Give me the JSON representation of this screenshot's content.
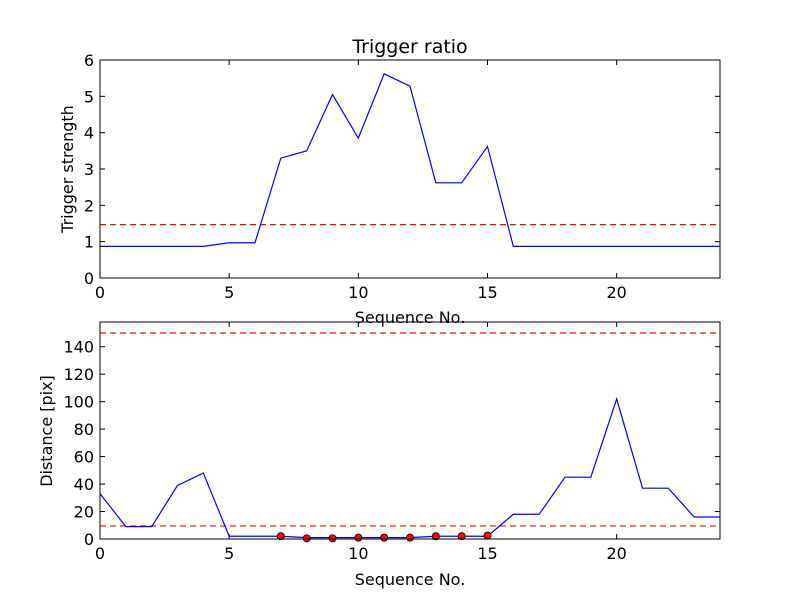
{
  "chart_data": [
    {
      "type": "line",
      "title": "Trigger ratio",
      "xlabel": "Sequence No.",
      "ylabel": "Trigger strength",
      "xlim": [
        0,
        24
      ],
      "ylim": [
        0,
        6
      ],
      "xticks": [
        0,
        5,
        10,
        15,
        20
      ],
      "yticks": [
        0,
        1,
        2,
        3,
        4,
        5,
        6
      ],
      "grid": false,
      "series": [
        {
          "color": "#0000ff",
          "style": "solid",
          "x": [
            0,
            1,
            2,
            3,
            4,
            5,
            6,
            7,
            8,
            9,
            10,
            11,
            12,
            13,
            14,
            15,
            16,
            17,
            18,
            19,
            20,
            21,
            22,
            23,
            24
          ],
          "y": [
            0.87,
            0.87,
            0.87,
            0.87,
            0.87,
            0.97,
            0.97,
            3.3,
            3.5,
            5.05,
            3.85,
            5.62,
            5.28,
            2.62,
            2.62,
            3.62,
            0.87,
            0.87,
            0.87,
            0.87,
            0.87,
            0.87,
            0.87,
            0.87,
            0.87
          ]
        }
      ],
      "hlines": [
        {
          "y": 1.47,
          "color": "#ff0000",
          "style": "dashed"
        }
      ]
    },
    {
      "type": "line",
      "title": "",
      "xlabel": "Sequence No.",
      "ylabel": "Distance [pix]",
      "xlim": [
        0,
        24
      ],
      "ylim": [
        0,
        158
      ],
      "xticks": [
        0,
        5,
        10,
        15,
        20
      ],
      "yticks": [
        0,
        20,
        40,
        60,
        80,
        100,
        120,
        140
      ],
      "grid": false,
      "series": [
        {
          "color": "#0000ff",
          "style": "solid",
          "x": [
            0,
            1,
            2,
            3,
            4,
            5,
            6,
            7,
            8,
            9,
            10,
            11,
            12,
            13,
            14,
            15,
            16,
            17,
            18,
            19,
            20,
            21,
            22,
            23,
            24
          ],
          "y": [
            33,
            9,
            9,
            39,
            48,
            2,
            2,
            2,
            1,
            1,
            1,
            1,
            1,
            2,
            2,
            2,
            18,
            18,
            45,
            45,
            102,
            37,
            37,
            16,
            16
          ]
        }
      ],
      "markers": {
        "color": "#ff0000",
        "x": [
          7,
          8,
          9,
          10,
          11,
          12,
          13,
          14,
          15
        ],
        "y": [
          2,
          0.5,
          0.5,
          1,
          1,
          1,
          2,
          2,
          2.5
        ]
      },
      "hlines": [
        {
          "y": 150,
          "color": "#ff0000",
          "style": "dashed"
        },
        {
          "y": 9.5,
          "color": "#ff0000",
          "style": "dashed"
        }
      ]
    }
  ]
}
